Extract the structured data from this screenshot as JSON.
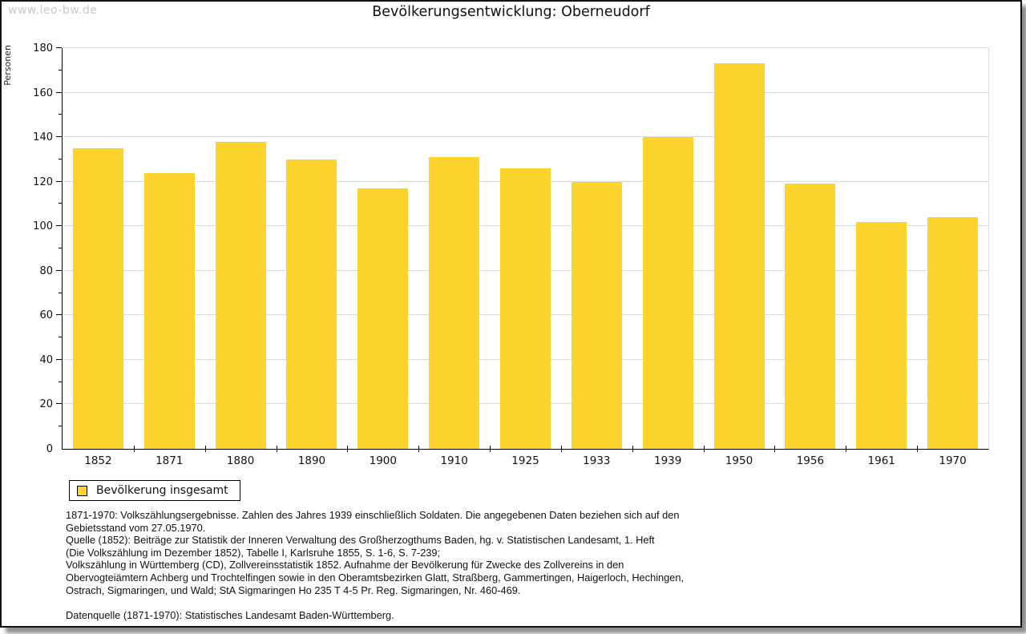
{
  "watermark": "www.leo-bw.de",
  "chart_data": {
    "type": "bar",
    "title": "Bevölkerungsentwicklung: Oberneudorf",
    "ylabel": "Personen",
    "xlabel": "",
    "categories": [
      "1852",
      "1871",
      "1880",
      "1890",
      "1900",
      "1910",
      "1925",
      "1933",
      "1939",
      "1950",
      "1956",
      "1961",
      "1970"
    ],
    "values": [
      135,
      124,
      138,
      130,
      117,
      131,
      126,
      120,
      140,
      173,
      119,
      102,
      104
    ],
    "series_name": "Bevölkerung insgesamt",
    "ylim": [
      0,
      180
    ],
    "y_tick_major": 20,
    "y_tick_minor": 10,
    "grid": "horizontal-major",
    "legend_position": "bottom-left",
    "bar_color": "#fcd42d",
    "grid_color": "#d9d9d9",
    "axis_color": "#000000"
  },
  "legend": {
    "label": "Bevölkerung insgesamt",
    "swatch_color": "#fcd42d"
  },
  "footer": {
    "lines": [
      "1871-1970: Volkszählungsergebnisse. Zahlen des Jahres 1939 einschließlich Soldaten. Die angegebenen Daten beziehen sich auf den",
      "Gebietsstand vom 27.05.1970.",
      "Quelle (1852): Beiträge zur Statistik der Inneren Verwaltung des Großherzogthums Baden, hg. v. Statistischen Landesamt, 1. Heft",
      "(Die Volkszählung im Dezember 1852), Tabelle I, Karlsruhe 1855, S. 1-6, S. 7-239;",
      "Volkszählung in Württemberg (CD), Zollvereinsstatistik 1852. Aufnahme der Bevölkerung für Zwecke des Zollvereins in den",
      "Obervogteiämtern Achberg und Trochtelfingen sowie in den Oberamtsbezirken Glatt, Straßberg, Gammertingen, Haigerloch, Hechingen,",
      "Ostrach, Sigmaringen, und Wald; StA Sigmaringen Ho 235 T 4-5 Pr. Reg. Sigmaringen, Nr. 460-469.",
      "Datenquelle (1871-1970): Statistisches Landesamt Baden-Württemberg."
    ]
  }
}
